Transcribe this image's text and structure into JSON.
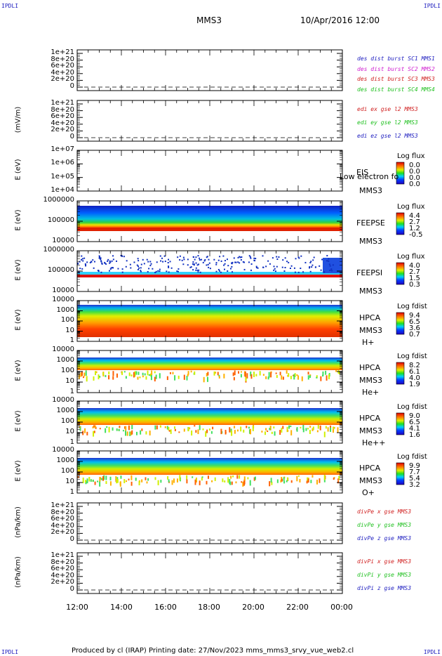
{
  "corners": {
    "tl": "IPDLI",
    "tr": "IPDLI",
    "bl": "IPDLI",
    "br": "IPDLI"
  },
  "header": {
    "spacecraft": "MMS3",
    "datetime": "10/Apr/2016 12:00"
  },
  "footer": {
    "text": "Produced by cl (IRAP)   Printing date: 27/Nov/2023   mms_mms3_srvy_vue_web2.cl"
  },
  "xaxis": {
    "ticks": [
      "12:00",
      "14:00",
      "16:00",
      "18:00",
      "20:00",
      "22:00",
      "00:00"
    ]
  },
  "colors": {
    "blue": "#2020c0",
    "magenta": "#d020d0",
    "red": "#d02020",
    "green": "#20c020"
  },
  "chart_data": [
    {
      "type": "line",
      "ylabel": "",
      "ticks": [
        "1e+21",
        "8e+20",
        "6e+20",
        "4e+20",
        "2e+20",
        "0"
      ],
      "ylim": [
        0,
        1e+21
      ],
      "series": [
        {
          "name": "des dist burst SC1 MMS1",
          "color": "blue"
        },
        {
          "name": "des dist burst SC2 MMS2",
          "color": "magenta"
        },
        {
          "name": "des dist burst SC3 MMS3",
          "color": "red"
        },
        {
          "name": "des dist burst SC4 MMS4",
          "color": "green"
        }
      ]
    },
    {
      "type": "line",
      "ylabel": "(mV/m)",
      "ticks": [
        "1e+21",
        "8e+20",
        "6e+20",
        "4e+20",
        "2e+20",
        "0"
      ],
      "ylim": [
        0,
        1e+21
      ],
      "series": [
        {
          "name": "edi ex gse l2 MMS3",
          "color": "red"
        },
        {
          "name": "edi ey gse l2 MMS3",
          "color": "green"
        },
        {
          "name": "edi ez gse l2 MMS3",
          "color": "blue"
        }
      ]
    },
    {
      "type": "heatmap",
      "ylabel": "E (eV)",
      "ticks": [
        "1e+07",
        "1e+06",
        "1e+05",
        "1e+04"
      ],
      "log": true,
      "labels": [
        "EIS",
        "MMS3"
      ],
      "overlay": "Low electron fo",
      "cbar": {
        "title": "Log flux",
        "values": [
          "0.0",
          "0.0",
          "0.0",
          "0.0"
        ]
      }
    },
    {
      "type": "heatmap",
      "ylabel": "E (eV)",
      "ticks": [
        "1000000",
        "100000",
        "10000"
      ],
      "log": true,
      "labels": [
        "FEEPSE",
        "MMS3"
      ],
      "cbar": {
        "title": "Log flux",
        "values": [
          "4.4",
          "2.7",
          "1.2",
          "-0.5"
        ]
      }
    },
    {
      "type": "heatmap",
      "ylabel": "E (eV)",
      "ticks": [
        "1000000",
        "100000",
        "10000"
      ],
      "log": true,
      "labels": [
        "FEEPSI",
        "MMS3"
      ],
      "cbar": {
        "title": "Log flux",
        "values": [
          "4.0",
          "2.7",
          "1.5",
          "0.3"
        ]
      }
    },
    {
      "type": "heatmap",
      "ylabel": "E (eV)",
      "ticks": [
        "10000",
        "1000",
        "100",
        "10",
        "1"
      ],
      "log": true,
      "labels": [
        "HPCA",
        "MMS3",
        "H+"
      ],
      "cbar": {
        "title": "Log fdist",
        "values": [
          "9.4",
          "6.5",
          "3.6",
          "0.7"
        ]
      }
    },
    {
      "type": "heatmap",
      "ylabel": "E (eV)",
      "ticks": [
        "10000",
        "1000",
        "100",
        "10",
        "1"
      ],
      "log": true,
      "labels": [
        "HPCA",
        "MMS3",
        "He+"
      ],
      "cbar": {
        "title": "Log fdist",
        "values": [
          "8.2",
          "6.1",
          "4.0",
          "1.9"
        ]
      }
    },
    {
      "type": "heatmap",
      "ylabel": "E (eV)",
      "ticks": [
        "10000",
        "1000",
        "100",
        "10",
        "1"
      ],
      "log": true,
      "labels": [
        "HPCA",
        "MMS3",
        "He++"
      ],
      "cbar": {
        "title": "Log fdist",
        "values": [
          "9.0",
          "6.5",
          "4.1",
          "1.6"
        ]
      }
    },
    {
      "type": "heatmap",
      "ylabel": "E (eV)",
      "ticks": [
        "10000",
        "1000",
        "100",
        "10",
        "1"
      ],
      "log": true,
      "labels": [
        "HPCA",
        "MMS3",
        "O+"
      ],
      "cbar": {
        "title": "Log fdist",
        "values": [
          "9.9",
          "7.7",
          "5.4",
          "3.2"
        ]
      }
    },
    {
      "type": "line",
      "ylabel": "(nPa/km)",
      "ticks": [
        "1e+21",
        "8e+20",
        "6e+20",
        "4e+20",
        "2e+20",
        "0"
      ],
      "ylim": [
        0,
        1e+21
      ],
      "series": [
        {
          "name": "divPe x gse MMS3",
          "color": "red"
        },
        {
          "name": "divPe y gse MMS3",
          "color": "green"
        },
        {
          "name": "divPe z gse MMS3",
          "color": "blue"
        }
      ]
    },
    {
      "type": "line",
      "ylabel": "(nPa/km)",
      "ticks": [
        "1e+21",
        "8e+20",
        "6e+20",
        "4e+20",
        "2e+20",
        "0"
      ],
      "ylim": [
        0,
        1e+21
      ],
      "series": [
        {
          "name": "divPi x gse MMS3",
          "color": "red"
        },
        {
          "name": "divPi y gse MMS3",
          "color": "green"
        },
        {
          "name": "divPi z gse MMS3",
          "color": "blue"
        }
      ]
    }
  ]
}
